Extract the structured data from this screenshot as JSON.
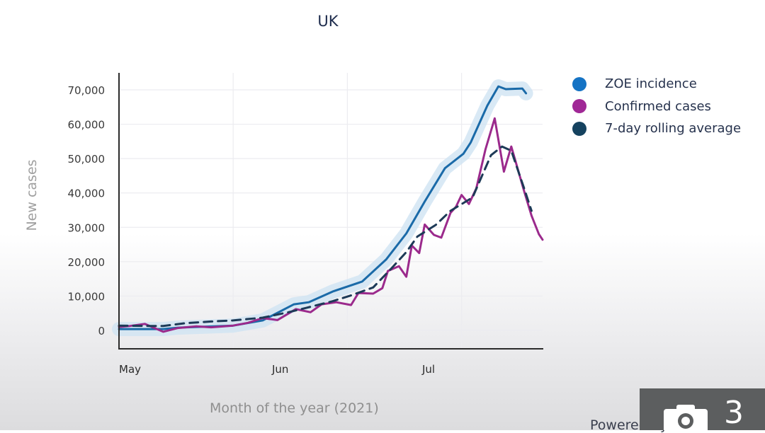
{
  "title": "UK",
  "colors": {
    "zoe": "#1a6aa8",
    "zoe_band": "#cfe3f2",
    "confirmed": "#9b2a8c",
    "rolling": "#1d3a57",
    "legend_zoe": "#1573c4",
    "legend_confirmed": "#a02896",
    "legend_rolling": "#15425f"
  },
  "legend": [
    {
      "label": "ZOE incidence",
      "color_key": "legend_zoe"
    },
    {
      "label": "Confirmed cases",
      "color_key": "legend_confirmed"
    },
    {
      "label": "7-day rolling average",
      "color_key": "legend_rolling"
    }
  ],
  "overlay": {
    "powered_text": "Powered by ZOE",
    "camera_count": "3",
    "camera_icon": "camera-icon"
  },
  "chart_data": {
    "type": "line",
    "title": "UK",
    "xlabel": "Month of the year (2021)",
    "ylabel": "New cases",
    "ylim": [
      -5000,
      75000
    ],
    "xlim_days": [
      0,
      115
    ],
    "x_unit": "days since 1 May 2021",
    "y_ticks": [
      0,
      10000,
      20000,
      30000,
      40000,
      50000,
      60000,
      70000
    ],
    "y_tick_labels": [
      "0",
      "10,000",
      "20,000",
      "30,000",
      "40,000",
      "50,000",
      "60,000",
      "70,000"
    ],
    "x_ticks": [
      {
        "day": 0,
        "label": "May"
      },
      {
        "day": 44,
        "label": "Jun"
      },
      {
        "day": 84,
        "label": "Jul"
      }
    ],
    "grid": true,
    "legend_position": "top-right",
    "series": [
      {
        "name": "ZOE incidence",
        "style": "solid",
        "color_key": "zoe",
        "band": true,
        "points": [
          [
            0,
            400
          ],
          [
            12,
            400
          ],
          [
            16,
            800
          ],
          [
            31,
            1400
          ],
          [
            39,
            2900
          ],
          [
            47.5,
            7600
          ],
          [
            51.5,
            8200
          ],
          [
            58,
            11300
          ],
          [
            66,
            14200
          ],
          [
            72.5,
            20600
          ],
          [
            78,
            28200
          ],
          [
            83,
            37500
          ],
          [
            88.5,
            47200
          ],
          [
            93.5,
            51400
          ],
          [
            95.5,
            54700
          ],
          [
            100,
            65400
          ],
          [
            103,
            71000
          ],
          [
            105,
            70200
          ],
          [
            109.5,
            70400
          ],
          [
            110.5,
            69000
          ]
        ]
      },
      {
        "name": "Confirmed cases",
        "style": "solid",
        "color_key": "confirmed",
        "band": false,
        "points": [
          [
            0,
            1000
          ],
          [
            3,
            1300
          ],
          [
            7,
            1900
          ],
          [
            12,
            -400
          ],
          [
            16,
            700
          ],
          [
            21,
            1200
          ],
          [
            25,
            900
          ],
          [
            31,
            1400
          ],
          [
            35,
            2200
          ],
          [
            39,
            3600
          ],
          [
            43,
            3000
          ],
          [
            48,
            6200
          ],
          [
            52,
            5300
          ],
          [
            55,
            7600
          ],
          [
            59,
            8200
          ],
          [
            63,
            7400
          ],
          [
            65,
            10900
          ],
          [
            69,
            10700
          ],
          [
            71.5,
            12300
          ],
          [
            73,
            17300
          ],
          [
            76,
            18700
          ],
          [
            78,
            15600
          ],
          [
            79.5,
            24700
          ],
          [
            81.5,
            22500
          ],
          [
            83,
            30800
          ],
          [
            85.5,
            27800
          ],
          [
            87.5,
            27000
          ],
          [
            90,
            34200
          ],
          [
            91.5,
            36000
          ],
          [
            93,
            39400
          ],
          [
            95,
            36800
          ],
          [
            97,
            41300
          ],
          [
            99.5,
            52700
          ],
          [
            102,
            61700
          ],
          [
            104.5,
            46200
          ],
          [
            106.5,
            53500
          ],
          [
            110,
            40500
          ],
          [
            112,
            33400
          ],
          [
            114,
            28000
          ],
          [
            115,
            26400
          ]
        ]
      },
      {
        "name": "7-day rolling average",
        "style": "dashed",
        "color_key": "rolling",
        "band": false,
        "points": [
          [
            0,
            1400
          ],
          [
            8,
            1300
          ],
          [
            12,
            1300
          ],
          [
            18,
            2100
          ],
          [
            25,
            2600
          ],
          [
            31,
            2900
          ],
          [
            39,
            3700
          ],
          [
            46,
            5300
          ],
          [
            51,
            6600
          ],
          [
            58,
            8500
          ],
          [
            63,
            10200
          ],
          [
            69,
            12500
          ],
          [
            74,
            18100
          ],
          [
            78,
            22800
          ],
          [
            81,
            27300
          ],
          [
            86,
            30700
          ],
          [
            90,
            34800
          ],
          [
            96,
            38700
          ],
          [
            101,
            51000
          ],
          [
            104,
            53500
          ],
          [
            106.5,
            52300
          ],
          [
            110,
            41300
          ],
          [
            112,
            34800
          ]
        ]
      }
    ]
  }
}
